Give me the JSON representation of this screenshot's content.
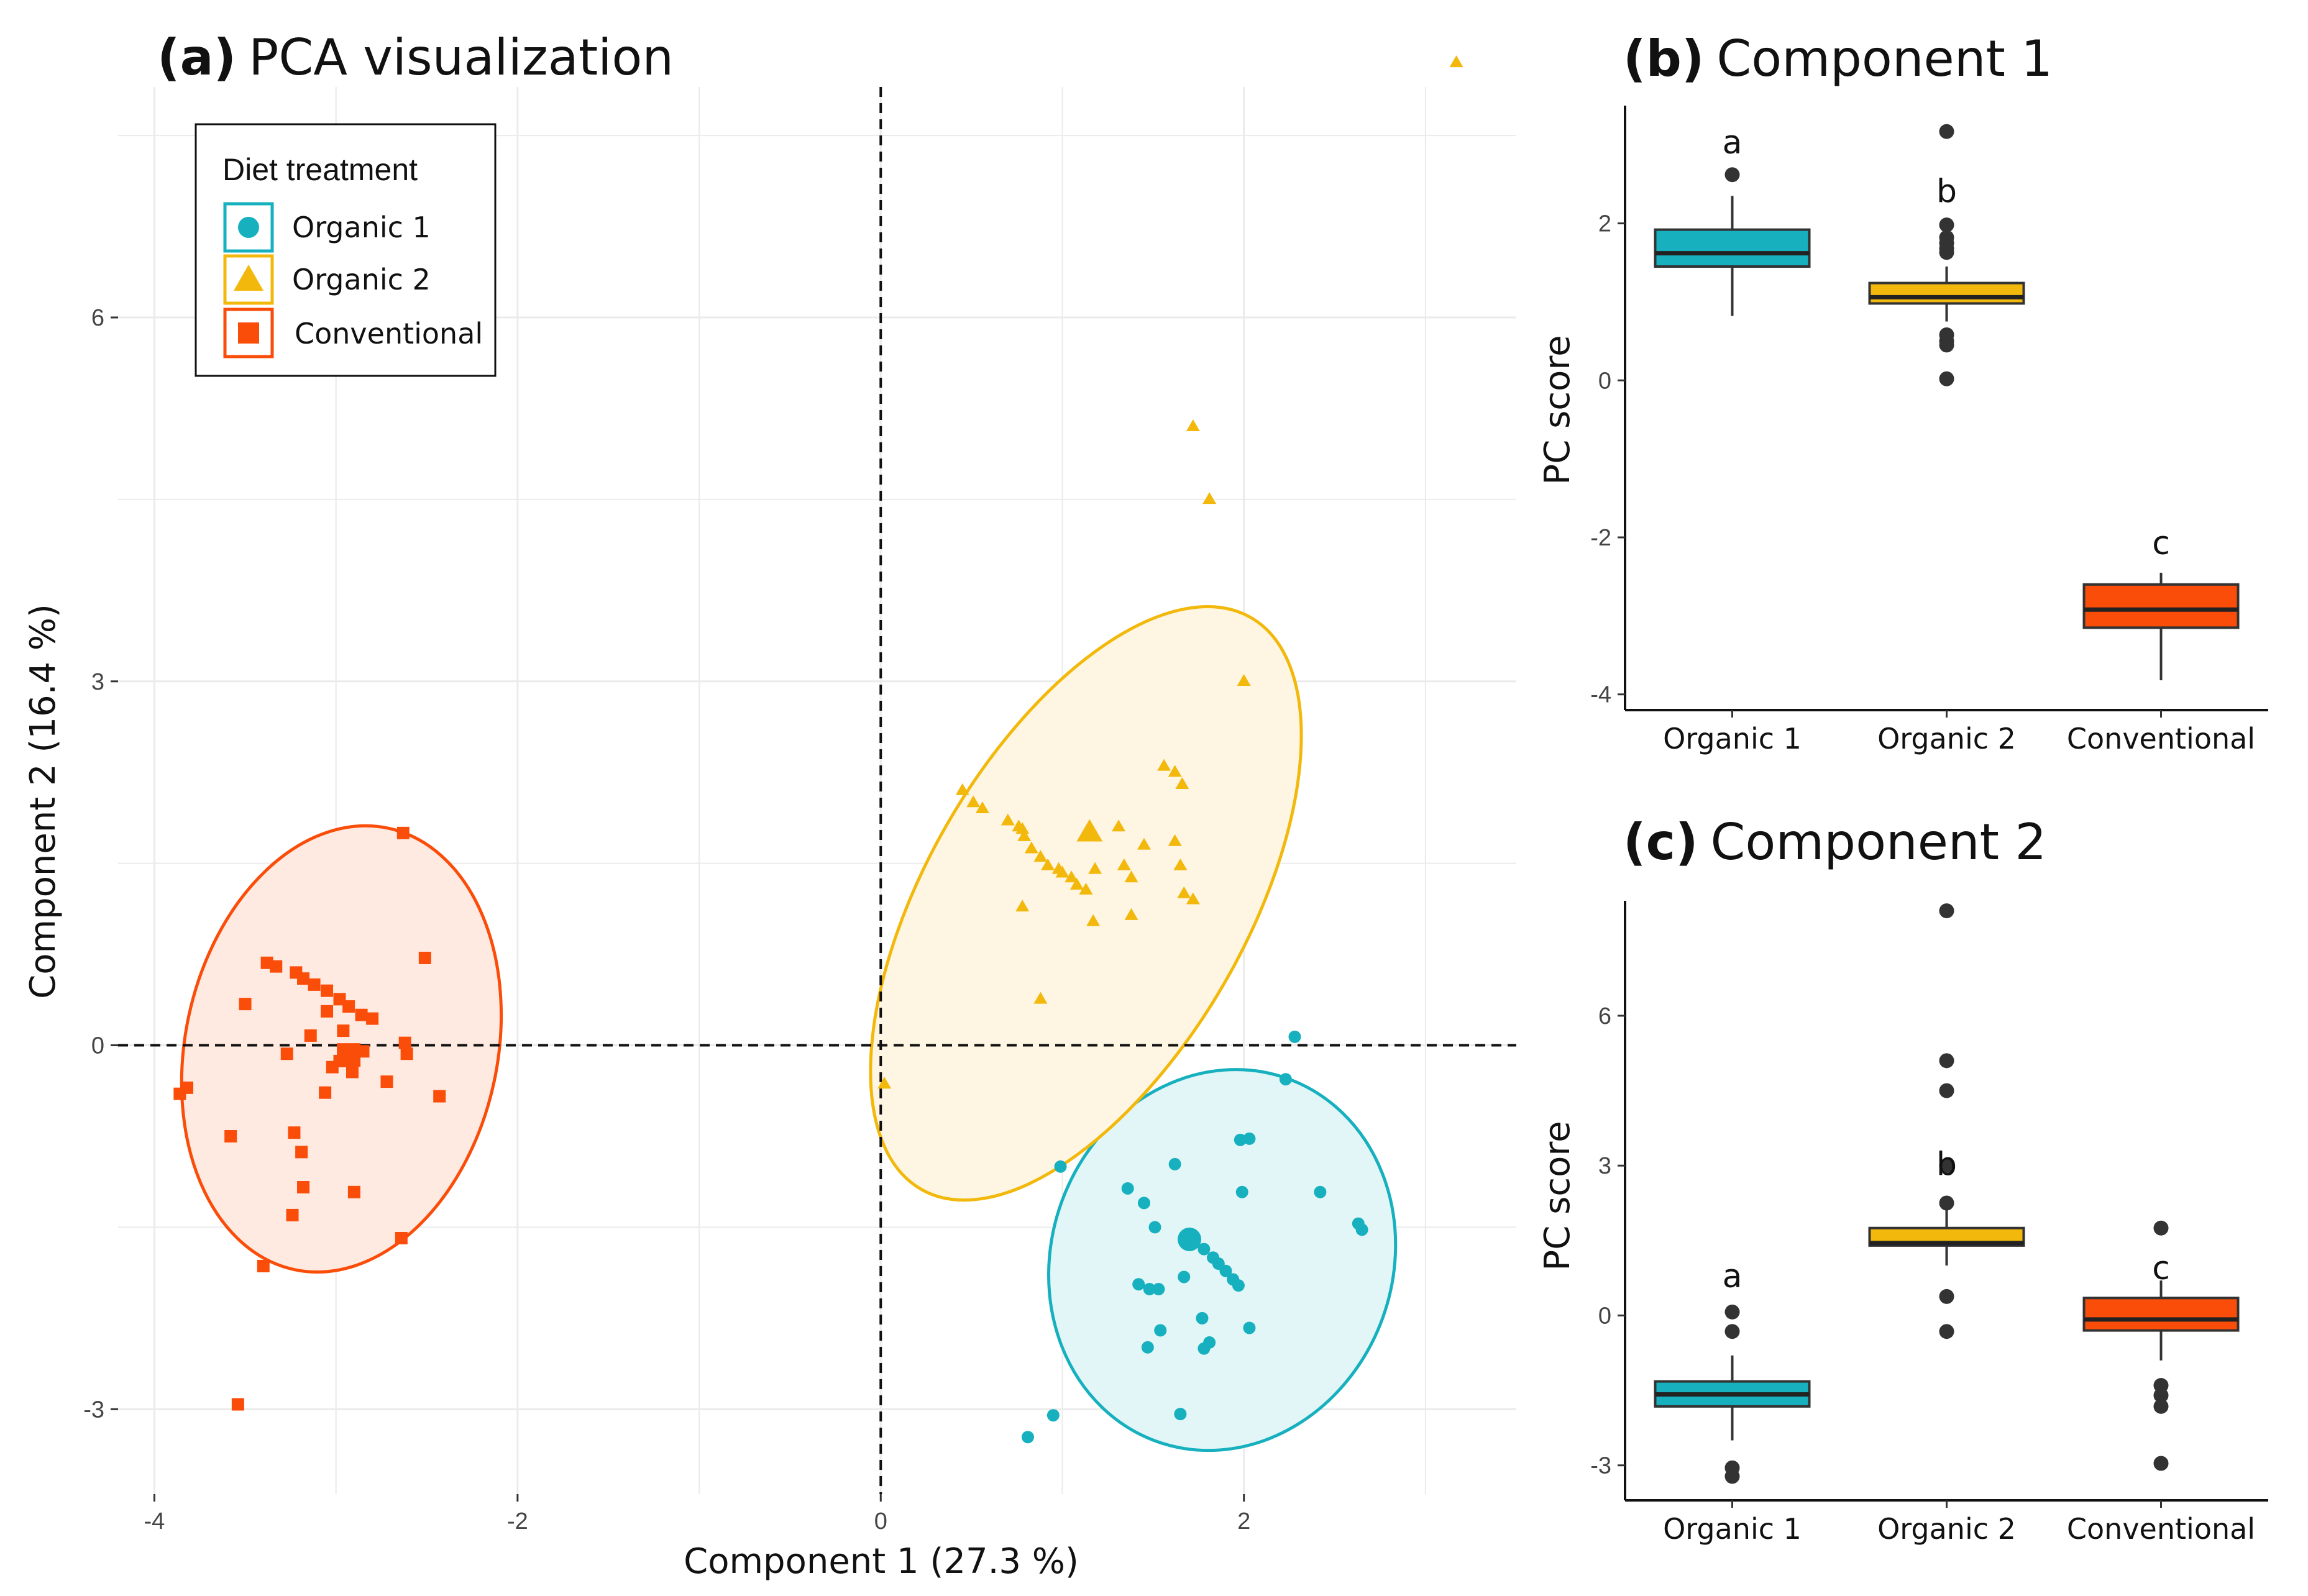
{
  "colors": {
    "organic1": "#16b0bf",
    "organic2": "#f3b80c",
    "conventional": "#fb4d0a",
    "grid": "#ebebeb",
    "outlier": "#333333"
  },
  "chart_data": [
    {
      "type": "scatter",
      "title_prefix": "(a)",
      "title": "PCA visualization",
      "xlabel": "Component 1 (27.3 %)",
      "ylabel": "Component 2 (16.4 %)",
      "xlim": [
        -4.2,
        3.5
      ],
      "ylim": [
        -3.7,
        7.9
      ],
      "xticks": [
        -4,
        -2,
        0,
        2
      ],
      "yticks": [
        -3,
        0,
        3,
        6
      ],
      "reference_lines": {
        "x": 0,
        "y": 0,
        "style": "dashed"
      },
      "legend": {
        "title": "Diet treatment",
        "position": "top-left",
        "items": [
          "Organic 1",
          "Organic 2",
          "Conventional"
        ]
      },
      "series": [
        {
          "name": "Organic 1",
          "marker": "circle",
          "color_key": "organic1",
          "centroid": [
            1.7,
            -1.6
          ],
          "ellipse": {
            "center": [
              1.88,
              -1.77
            ],
            "rx": 0.94,
            "ry": 1.59,
            "rotation_deg": 20
          },
          "points": [
            [
              2.28,
              0.07
            ],
            [
              2.23,
              -0.28
            ],
            [
              1.98,
              -0.78
            ],
            [
              2.03,
              -0.77
            ],
            [
              2.42,
              -1.21
            ],
            [
              2.63,
              -1.47
            ],
            [
              2.65,
              -1.52
            ],
            [
              0.99,
              -1.0
            ],
            [
              1.62,
              -0.98
            ],
            [
              1.36,
              -1.18
            ],
            [
              1.45,
              -1.3
            ],
            [
              1.51,
              -1.5
            ],
            [
              1.99,
              -1.21
            ],
            [
              1.78,
              -1.68
            ],
            [
              1.83,
              -1.75
            ],
            [
              1.86,
              -1.8
            ],
            [
              1.9,
              -1.86
            ],
            [
              1.94,
              -1.93
            ],
            [
              1.97,
              -1.98
            ],
            [
              1.72,
              -1.63
            ],
            [
              1.67,
              -1.91
            ],
            [
              1.48,
              -2.01
            ],
            [
              1.42,
              -1.97
            ],
            [
              1.53,
              -2.01
            ],
            [
              1.77,
              -2.25
            ],
            [
              2.03,
              -2.33
            ],
            [
              1.54,
              -2.35
            ],
            [
              1.81,
              -2.45
            ],
            [
              1.78,
              -2.5
            ],
            [
              1.47,
              -2.49
            ],
            [
              1.65,
              -3.04
            ],
            [
              0.95,
              -3.05
            ],
            [
              0.81,
              -3.23
            ]
          ]
        },
        {
          "name": "Organic 2",
          "marker": "triangle",
          "color_key": "organic2",
          "centroid": [
            1.15,
            1.75
          ],
          "ellipse": {
            "center": [
              1.13,
              1.17
            ],
            "rx": 0.88,
            "ry": 2.72,
            "rotation_deg": 30
          },
          "points": [
            [
              3.17,
              8.1
            ],
            [
              1.72,
              5.1
            ],
            [
              1.81,
              4.5
            ],
            [
              2.0,
              3.0
            ],
            [
              1.56,
              2.3
            ],
            [
              1.62,
              2.25
            ],
            [
              1.66,
              2.15
            ],
            [
              0.45,
              2.1
            ],
            [
              0.51,
              2.0
            ],
            [
              0.56,
              1.95
            ],
            [
              0.7,
              1.85
            ],
            [
              0.76,
              1.8
            ],
            [
              0.78,
              1.78
            ],
            [
              0.79,
              1.72
            ],
            [
              0.83,
              1.62
            ],
            [
              0.88,
              1.55
            ],
            [
              0.92,
              1.48
            ],
            [
              0.98,
              1.45
            ],
            [
              1.0,
              1.42
            ],
            [
              1.05,
              1.38
            ],
            [
              1.08,
              1.32
            ],
            [
              1.13,
              1.28
            ],
            [
              1.18,
              1.45
            ],
            [
              1.31,
              1.8
            ],
            [
              1.45,
              1.65
            ],
            [
              1.62,
              1.68
            ],
            [
              1.65,
              1.48
            ],
            [
              1.34,
              1.48
            ],
            [
              1.38,
              1.38
            ],
            [
              1.67,
              1.25
            ],
            [
              1.72,
              1.2
            ],
            [
              0.78,
              1.14
            ],
            [
              1.38,
              1.07
            ],
            [
              1.17,
              1.02
            ],
            [
              0.88,
              0.38
            ],
            [
              0.02,
              -0.32
            ]
          ]
        },
        {
          "name": "Conventional",
          "marker": "square",
          "color_key": "conventional",
          "centroid": [
            -2.93,
            -0.08
          ],
          "ellipse": {
            "center": [
              -2.97,
              -0.03
            ],
            "rx": 0.86,
            "ry": 1.86,
            "rotation_deg": 12
          },
          "points": [
            [
              -2.63,
              1.75
            ],
            [
              -2.51,
              0.72
            ],
            [
              -3.38,
              0.68
            ],
            [
              -3.33,
              0.65
            ],
            [
              -3.22,
              0.6
            ],
            [
              -3.18,
              0.55
            ],
            [
              -3.12,
              0.5
            ],
            [
              -3.05,
              0.45
            ],
            [
              -2.98,
              0.38
            ],
            [
              -2.93,
              0.32
            ],
            [
              -2.86,
              0.25
            ],
            [
              -2.8,
              0.22
            ],
            [
              -3.05,
              0.28
            ],
            [
              -3.5,
              0.34
            ],
            [
              -3.14,
              0.08
            ],
            [
              -2.96,
              0.12
            ],
            [
              -2.62,
              0.02
            ],
            [
              -2.61,
              -0.07
            ],
            [
              -2.85,
              -0.05
            ],
            [
              -2.93,
              -0.09
            ],
            [
              -2.98,
              -0.13
            ],
            [
              -3.02,
              -0.18
            ],
            [
              -2.91,
              -0.22
            ],
            [
              -3.27,
              -0.07
            ],
            [
              -3.06,
              -0.39
            ],
            [
              -2.72,
              -0.3
            ],
            [
              -2.43,
              -0.42
            ],
            [
              -3.82,
              -0.35
            ],
            [
              -3.86,
              -0.4
            ],
            [
              -3.58,
              -0.75
            ],
            [
              -3.23,
              -0.72
            ],
            [
              -3.19,
              -0.88
            ],
            [
              -3.18,
              -1.17
            ],
            [
              -2.9,
              -1.21
            ],
            [
              -3.24,
              -1.4
            ],
            [
              -2.64,
              -1.59
            ],
            [
              -3.4,
              -1.82
            ],
            [
              -3.54,
              -2.96
            ]
          ]
        }
      ]
    },
    {
      "type": "box",
      "title_prefix": "(b)",
      "title": "Component 1",
      "ylabel": "PC score",
      "ylim": [
        -4.2,
        3.5
      ],
      "yticks": [
        -4,
        -2,
        0,
        2
      ],
      "categories": [
        "Organic 1",
        "Organic 2",
        "Conventional"
      ],
      "boxes": [
        {
          "q1": 1.45,
          "median": 1.62,
          "q3": 1.92,
          "whisker_low": 0.82,
          "whisker_high": 2.35,
          "outliers": [
            2.62
          ],
          "letter": "a",
          "color_key": "organic1"
        },
        {
          "q1": 0.98,
          "median": 1.06,
          "q3": 1.24,
          "whisker_low": 0.75,
          "whisker_high": 1.45,
          "outliers": [
            3.17,
            1.98,
            1.82,
            1.75,
            1.68,
            1.63,
            0.58,
            0.5,
            0.45,
            0.02
          ],
          "letter": "b",
          "color_key": "organic2"
        },
        {
          "q1": -3.15,
          "median": -2.92,
          "q3": -2.6,
          "whisker_low": -3.82,
          "whisker_high": -2.45,
          "outliers": [],
          "letter": "c",
          "color_key": "conventional"
        }
      ]
    },
    {
      "type": "box",
      "title_prefix": "(c)",
      "title": "Component 2",
      "ylabel": "PC score",
      "ylim": [
        -3.7,
        8.3
      ],
      "yticks": [
        -3,
        0,
        3,
        6
      ],
      "categories": [
        "Organic 1",
        "Organic 2",
        "Conventional"
      ],
      "boxes": [
        {
          "q1": -1.82,
          "median": -1.58,
          "q3": -1.32,
          "whisker_low": -2.5,
          "whisker_high": -0.8,
          "outliers": [
            0.07,
            -0.32,
            -3.05,
            -3.22
          ],
          "letter": "a",
          "color_key": "organic1"
        },
        {
          "q1": 1.4,
          "median": 1.45,
          "q3": 1.75,
          "whisker_low": 1.0,
          "whisker_high": 2.3,
          "outliers": [
            8.1,
            5.1,
            4.5,
            3.0,
            2.25,
            0.38,
            -0.32
          ],
          "letter": "b",
          "color_key": "organic2"
        },
        {
          "q1": -0.3,
          "median": -0.08,
          "q3": 0.35,
          "whisker_low": -0.9,
          "whisker_high": 0.7,
          "outliers": [
            1.75,
            -1.4,
            -1.6,
            -1.82,
            -2.96
          ],
          "letter": "c",
          "color_key": "conventional"
        }
      ]
    }
  ]
}
